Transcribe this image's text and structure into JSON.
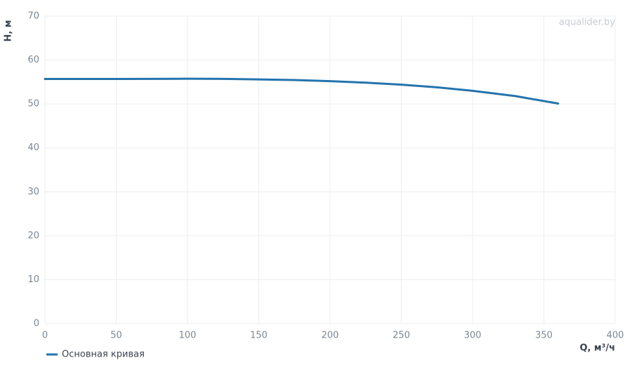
{
  "chart_data": {
    "type": "line",
    "watermark": "aqualider.by",
    "x_label": "Q, м³/ч",
    "y_label": "H, м",
    "x": [
      0,
      25,
      50,
      75,
      100,
      125,
      150,
      175,
      200,
      225,
      250,
      275,
      300,
      330,
      360
    ],
    "series": [
      {
        "name": "Основная кривая",
        "color": "#2474ad",
        "values": [
          55.7,
          55.7,
          55.7,
          55.72,
          55.75,
          55.72,
          55.6,
          55.45,
          55.2,
          54.85,
          54.4,
          53.8,
          53.0,
          51.8,
          50.1
        ]
      }
    ],
    "xlim": [
      0,
      400
    ],
    "xticks": [
      0,
      50,
      100,
      150,
      200,
      250,
      300,
      350,
      400
    ],
    "ylim": [
      0,
      70
    ],
    "yticks": [
      0,
      10,
      20,
      30,
      40,
      50,
      60,
      70
    ],
    "grid": true,
    "legend": "bottom-left"
  }
}
